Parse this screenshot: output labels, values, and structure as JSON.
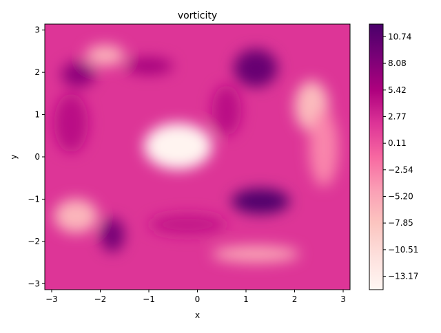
{
  "chart_data": {
    "type": "heatmap",
    "title": "vorticity",
    "xlabel": "x",
    "ylabel": "y",
    "xlim": [
      -3.14159,
      3.14159
    ],
    "ylim": [
      -3.14159,
      3.14159
    ],
    "xticks": [
      -3,
      -2,
      -1,
      0,
      1,
      2,
      3
    ],
    "yticks": [
      -3,
      -2,
      -1,
      0,
      1,
      2,
      3
    ],
    "colormap": "RdPu",
    "colorbar": {
      "range": [
        -14.5,
        12.0
      ],
      "ticks": [
        10.74,
        8.08,
        5.42,
        2.77,
        0.11,
        -2.54,
        -5.2,
        -7.85,
        -10.51,
        -13.17
      ],
      "tick_labels": [
        "10.74",
        "8.08",
        "5.42",
        "2.77",
        "0.11",
        "−2.54",
        "−5.20",
        "−7.85",
        "−10.51",
        "−13.17"
      ],
      "stops": [
        "#fff7f3",
        "#fde0dd",
        "#fcc5c0",
        "#fa9fb5",
        "#f768a1",
        "#dd3497",
        "#ae017e",
        "#7a0177",
        "#49006a"
      ]
    },
    "background_value": 2.0,
    "features": [
      {
        "x": -0.4,
        "y": 0.25,
        "value": -14.0,
        "rx": 0.7,
        "ry": 0.55
      },
      {
        "x": 1.3,
        "y": -1.05,
        "value": 11.5,
        "rx": 0.6,
        "ry": 0.3
      },
      {
        "x": 1.2,
        "y": 2.1,
        "value": 10.0,
        "rx": 0.45,
        "ry": 0.45
      },
      {
        "x": -1.75,
        "y": -1.85,
        "value": 9.0,
        "rx": 0.25,
        "ry": 0.4
      },
      {
        "x": -2.45,
        "y": 1.95,
        "value": 7.5,
        "rx": 0.35,
        "ry": 0.3
      },
      {
        "x": -1.0,
        "y": 2.15,
        "value": 6.0,
        "rx": 0.5,
        "ry": 0.2
      },
      {
        "x": 2.35,
        "y": 1.2,
        "value": -7.0,
        "rx": 0.35,
        "ry": 0.6
      },
      {
        "x": -2.5,
        "y": -1.4,
        "value": -6.5,
        "rx": 0.45,
        "ry": 0.4
      },
      {
        "x": -1.9,
        "y": 2.4,
        "value": -6.0,
        "rx": 0.4,
        "ry": 0.25
      },
      {
        "x": 1.2,
        "y": -2.3,
        "value": -5.0,
        "rx": 0.9,
        "ry": 0.2
      },
      {
        "x": 2.6,
        "y": 0.2,
        "value": -3.0,
        "rx": 0.3,
        "ry": 0.9
      },
      {
        "x": -2.6,
        "y": 0.8,
        "value": 4.5,
        "rx": 0.35,
        "ry": 0.7
      },
      {
        "x": -0.2,
        "y": -1.6,
        "value": 4.0,
        "rx": 0.8,
        "ry": 0.25
      },
      {
        "x": 0.6,
        "y": 1.1,
        "value": 4.5,
        "rx": 0.3,
        "ry": 0.6
      }
    ]
  }
}
